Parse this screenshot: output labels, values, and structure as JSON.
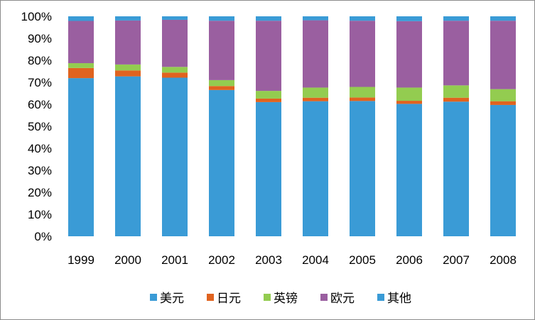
{
  "chart_data": {
    "type": "bar",
    "stacked": true,
    "percent_stacked": true,
    "categories": [
      "1999",
      "2000",
      "2001",
      "2002",
      "2003",
      "2004",
      "2005",
      "2006",
      "2007",
      "2008"
    ],
    "series": [
      {
        "name": "美元",
        "color": "#3a9bd6",
        "values": [
          71.9,
          72.7,
          72.1,
          66.5,
          61.0,
          61.4,
          61.5,
          60.2,
          61.2,
          59.7
        ]
      },
      {
        "name": "日元",
        "color": "#e0631f",
        "values": [
          4.6,
          2.7,
          2.3,
          1.8,
          1.6,
          1.6,
          1.6,
          1.4,
          1.8,
          1.7
        ]
      },
      {
        "name": "英镑",
        "color": "#93cc50",
        "values": [
          2.2,
          2.7,
          2.6,
          2.7,
          3.5,
          4.6,
          4.8,
          6.0,
          5.6,
          5.5
        ]
      },
      {
        "name": "欧元",
        "color": "#9a5fa0",
        "values": [
          19.2,
          20.0,
          21.4,
          27.0,
          31.9,
          30.6,
          30.1,
          30.2,
          29.4,
          31.1
        ]
      },
      {
        "name": "其他",
        "color": "#3a9bd6",
        "values": [
          2.1,
          1.9,
          1.6,
          2.0,
          2.0,
          1.8,
          2.0,
          2.2,
          2.0,
          2.0
        ]
      }
    ],
    "ylim": [
      0,
      100
    ],
    "y_ticks": [
      "0%",
      "10%",
      "20%",
      "30%",
      "40%",
      "50%",
      "60%",
      "70%",
      "80%",
      "90%",
      "100%"
    ],
    "grid": false,
    "legend_position": "bottom"
  }
}
